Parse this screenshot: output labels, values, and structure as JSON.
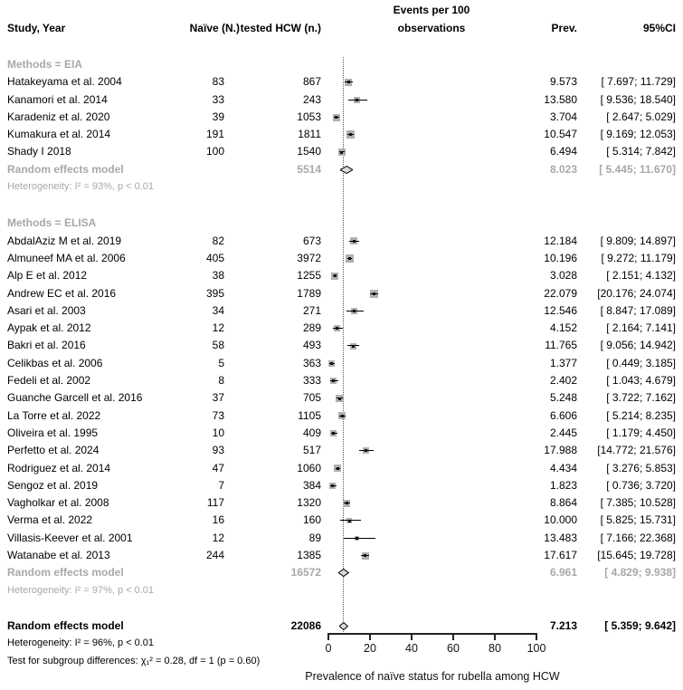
{
  "header": {
    "col_study": "Study, Year",
    "col_naive": "Naïve (N.)",
    "col_tested": "tested HCW (n.)",
    "col_plot_line1": "Events per 100",
    "col_plot_line2": "observations",
    "col_prev": "Prev.",
    "col_ci": "95%CI"
  },
  "chart_data": {
    "type": "forest",
    "effect_measure": "Events per 100 observations",
    "xlabel": "Prevalence of naïve status for rubella among HCW",
    "x_axis": {
      "min": 0,
      "max": 100,
      "ticks": [
        0,
        20,
        40,
        60,
        80,
        100
      ]
    },
    "reference_line": 7.213,
    "groups": [
      {
        "label": "Methods = EIA",
        "studies": [
          {
            "study": "Hatakeyama et al. 2004",
            "naive": 83,
            "tested": 867,
            "prev": 9.573,
            "ci": [
              7.697,
              11.729
            ]
          },
          {
            "study": "Kanamori et al. 2014",
            "naive": 33,
            "tested": 243,
            "prev": 13.58,
            "ci": [
              9.536,
              18.54
            ]
          },
          {
            "study": "Karadeniz et al. 2020",
            "naive": 39,
            "tested": 1053,
            "prev": 3.704,
            "ci": [
              2.647,
              5.029
            ]
          },
          {
            "study": "Kumakura et al. 2014",
            "naive": 191,
            "tested": 1811,
            "prev": 10.547,
            "ci": [
              9.169,
              12.053
            ]
          },
          {
            "study": "Shady I 2018",
            "naive": 100,
            "tested": 1540,
            "prev": 6.494,
            "ci": [
              5.314,
              7.842
            ]
          }
        ],
        "summary": {
          "label": "Random effects model",
          "tested": 5514,
          "prev": 8.023,
          "ci": [
            5.445,
            11.67
          ]
        },
        "heterogeneity": "Heterogeneity: I² = 93%, p < 0.01"
      },
      {
        "label": "Methods = ELISA",
        "studies": [
          {
            "study": "AbdalAziz M et al. 2019",
            "naive": 82,
            "tested": 673,
            "prev": 12.184,
            "ci": [
              9.809,
              14.897
            ]
          },
          {
            "study": "Almuneef MA et al. 2006",
            "naive": 405,
            "tested": 3972,
            "prev": 10.196,
            "ci": [
              9.272,
              11.179
            ]
          },
          {
            "study": "Alp E et al. 2012",
            "naive": 38,
            "tested": 1255,
            "prev": 3.028,
            "ci": [
              2.151,
              4.132
            ]
          },
          {
            "study": "Andrew EC et al. 2016",
            "naive": 395,
            "tested": 1789,
            "prev": 22.079,
            "ci": [
              20.176,
              24.074
            ]
          },
          {
            "study": "Asari et al. 2003",
            "naive": 34,
            "tested": 271,
            "prev": 12.546,
            "ci": [
              8.847,
              17.089
            ]
          },
          {
            "study": "Aypak et al. 2012",
            "naive": 12,
            "tested": 289,
            "prev": 4.152,
            "ci": [
              2.164,
              7.141
            ]
          },
          {
            "study": "Bakri et al. 2016",
            "naive": 58,
            "tested": 493,
            "prev": 11.765,
            "ci": [
              9.056,
              14.942
            ]
          },
          {
            "study": "Celikbas et al. 2006",
            "naive": 5,
            "tested": 363,
            "prev": 1.377,
            "ci": [
              0.449,
              3.185
            ]
          },
          {
            "study": "Fedeli et al. 2002",
            "naive": 8,
            "tested": 333,
            "prev": 2.402,
            "ci": [
              1.043,
              4.679
            ]
          },
          {
            "study": "Guanche Garcell et al. 2016",
            "naive": 37,
            "tested": 705,
            "prev": 5.248,
            "ci": [
              3.722,
              7.162
            ]
          },
          {
            "study": "La Torre et al. 2022",
            "naive": 73,
            "tested": 1105,
            "prev": 6.606,
            "ci": [
              5.214,
              8.235
            ]
          },
          {
            "study": "Oliveira et al. 1995",
            "naive": 10,
            "tested": 409,
            "prev": 2.445,
            "ci": [
              1.179,
              4.45
            ]
          },
          {
            "study": "Perfetto et al. 2024",
            "naive": 93,
            "tested": 517,
            "prev": 17.988,
            "ci": [
              14.772,
              21.576
            ]
          },
          {
            "study": "Rodriguez et al. 2014",
            "naive": 47,
            "tested": 1060,
            "prev": 4.434,
            "ci": [
              3.276,
              5.853
            ]
          },
          {
            "study": "Sengoz et al. 2019",
            "naive": 7,
            "tested": 384,
            "prev": 1.823,
            "ci": [
              0.736,
              3.72
            ]
          },
          {
            "study": "Vagholkar et al. 2008",
            "naive": 117,
            "tested": 1320,
            "prev": 8.864,
            "ci": [
              7.385,
              10.528
            ]
          },
          {
            "study": "Verma et al. 2022",
            "naive": 16,
            "tested": 160,
            "prev": 10.0,
            "ci": [
              5.825,
              15.731
            ]
          },
          {
            "study": "Villasis-Keever et al. 2001",
            "naive": 12,
            "tested": 89,
            "prev": 13.483,
            "ci": [
              7.166,
              22.368
            ]
          },
          {
            "study": "Watanabe et al. 2013",
            "naive": 244,
            "tested": 1385,
            "prev": 17.617,
            "ci": [
              15.645,
              19.728
            ]
          }
        ],
        "summary": {
          "label": "Random effects model",
          "tested": 16572,
          "prev": 6.961,
          "ci": [
            4.829,
            9.938
          ]
        },
        "heterogeneity": "Heterogeneity: I² = 97%, p < 0.01"
      }
    ],
    "overall": {
      "label": "Random effects model",
      "tested": 22086,
      "prev": 7.213,
      "ci": [
        5.359,
        9.642
      ]
    },
    "overall_heterogeneity": "Heterogeneity: I² = 96%, p < 0.01",
    "subgroup_test": "Test for subgroup differences: χ₁² = 0.28, df = 1 (p = 0.60)"
  }
}
